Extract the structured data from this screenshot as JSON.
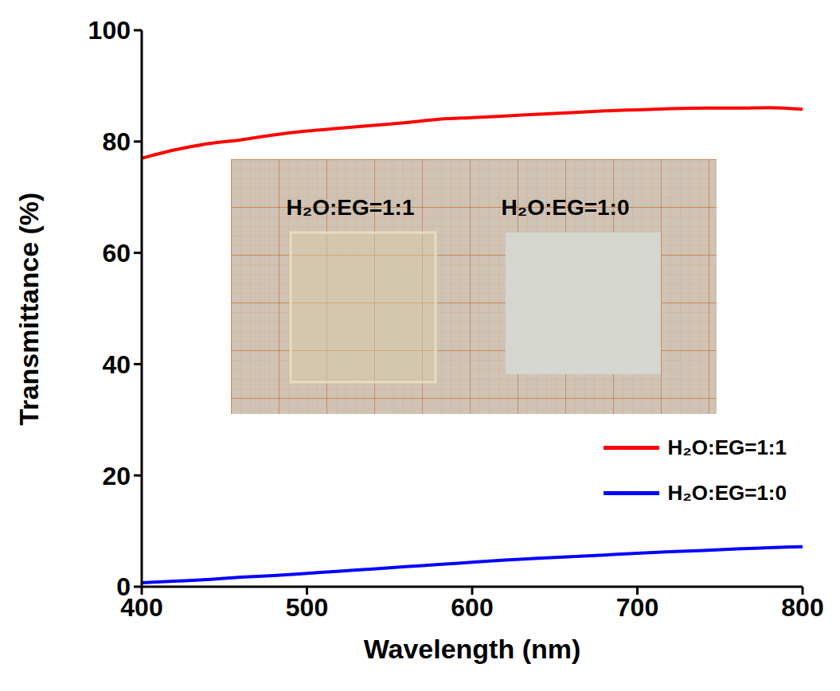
{
  "chart_data": {
    "type": "line",
    "x_label": "Wavelength (nm)",
    "y_label": "Transmittance (%)",
    "x": [
      400,
      420,
      440,
      460,
      480,
      500,
      520,
      540,
      560,
      580,
      600,
      620,
      640,
      660,
      680,
      700,
      720,
      740,
      760,
      780,
      800
    ],
    "series": [
      {
        "name": "H₂O:EG=1:1",
        "color": "#ff0000",
        "values": [
          77,
          78.5,
          79.6,
          80.3,
          81.2,
          81.9,
          82.4,
          82.9,
          83.4,
          84,
          84.3,
          84.6,
          84.9,
          85.2,
          85.5,
          85.7,
          85.9,
          86,
          86,
          86.1,
          85.8
        ]
      },
      {
        "name": "H₂O:EG=1:0",
        "color": "#0000ff",
        "values": [
          0.7,
          1.0,
          1.3,
          1.7,
          2.0,
          2.4,
          2.8,
          3.2,
          3.6,
          4.0,
          4.4,
          4.8,
          5.1,
          5.4,
          5.7,
          6.0,
          6.3,
          6.5,
          6.8,
          7.0,
          7.2
        ]
      }
    ],
    "xlim": [
      400,
      800
    ],
    "xticks": [
      400,
      500,
      600,
      700,
      800
    ],
    "ylim": [
      0,
      100
    ],
    "yticks": [
      0,
      20,
      40,
      60,
      80,
      100
    ],
    "legend": "lower right",
    "annotations": [
      "H₂O:EG=1:1",
      "H₂O:EG=1:0"
    ]
  }
}
